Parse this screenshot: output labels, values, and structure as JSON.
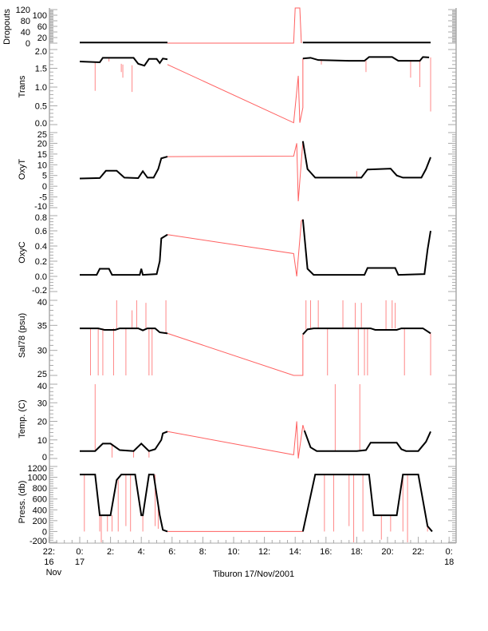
{
  "chart_data": [
    {
      "type": "line",
      "ylabel": "Dropouts",
      "ylim": [
        0,
        120
      ],
      "yticks": [
        "0",
        "20",
        "40",
        "60",
        "80",
        "100",
        "120"
      ],
      "black": [
        [
          "00:00",
          2
        ],
        [
          "05:42",
          2
        ],
        null,
        [
          "14:30",
          2
        ],
        [
          "22:48",
          2
        ]
      ],
      "red": [
        [
          "05:42",
          0
        ],
        [
          "13:54",
          0
        ],
        [
          "14:00",
          130
        ],
        [
          "14:18",
          130
        ],
        [
          "14:24",
          0
        ]
      ],
      "spikes": []
    },
    {
      "type": "line",
      "ylabel": "Trans",
      "ylim": [
        0,
        2
      ],
      "yticks": [
        "0.0",
        "0.5",
        "1.0",
        "1.5",
        "2.0"
      ],
      "black": [
        [
          "00:00",
          1.68
        ],
        [
          "01:18",
          1.66
        ],
        [
          "01:30",
          1.78
        ],
        [
          "03:30",
          1.78
        ],
        [
          "03:48",
          1.62
        ],
        [
          "04:12",
          1.57
        ],
        [
          "04:30",
          1.75
        ],
        [
          "05:00",
          1.75
        ],
        [
          "05:12",
          1.64
        ],
        [
          "05:24",
          1.76
        ],
        [
          "05:42",
          1.74
        ],
        null,
        [
          "14:30",
          1.76
        ],
        [
          "15:00",
          1.78
        ],
        [
          "15:30",
          1.72
        ],
        [
          "16:30",
          1.71
        ],
        [
          "17:30",
          1.7
        ],
        [
          "18:30",
          1.7
        ],
        [
          "18:48",
          1.8
        ],
        [
          "20:18",
          1.8
        ],
        [
          "20:42",
          1.7
        ],
        [
          "22:06",
          1.7
        ],
        [
          "22:18",
          1.8
        ],
        [
          "22:42",
          1.79
        ]
      ],
      "red": [
        [
          "05:42",
          1.6
        ],
        [
          "13:54",
          0.05
        ],
        [
          "14:12",
          1.3
        ],
        [
          "14:18",
          0.05
        ],
        [
          "14:30",
          0.45
        ],
        [
          "14:30",
          1.76
        ]
      ],
      "spikes": [
        [
          "01:00",
          1.67,
          0.9
        ],
        [
          "02:48",
          1.6,
          1.25
        ],
        [
          "03:24",
          1.58,
          0.87
        ],
        [
          "02:42",
          1.62,
          1.4
        ],
        [
          "01:54",
          1.76,
          1.68
        ],
        [
          "18:36",
          1.7,
          1.4
        ],
        [
          "21:30",
          1.7,
          1.25
        ],
        [
          "22:06",
          1.7,
          1.0
        ],
        [
          "22:48",
          1.79,
          0.35
        ],
        [
          "15:42",
          1.74,
          1.6
        ]
      ]
    },
    {
      "type": "line",
      "ylabel": "OxyT",
      "ylim": [
        -10,
        25
      ],
      "yticks": [
        "-10",
        "-5",
        "0",
        "5",
        "10",
        "15",
        "20",
        "25"
      ],
      "black": [
        [
          "00:00",
          3.6
        ],
        [
          "01:18",
          3.8
        ],
        [
          "01:42",
          7.2
        ],
        [
          "02:24",
          7.2
        ],
        [
          "02:54",
          4
        ],
        [
          "03:48",
          3.8
        ],
        [
          "04:06",
          7
        ],
        [
          "04:24",
          4
        ],
        [
          "04:48",
          4
        ],
        [
          "05:06",
          8
        ],
        [
          "05:18",
          13
        ],
        [
          "05:42",
          13.8
        ],
        null,
        [
          "14:30",
          21
        ],
        [
          "14:48",
          8
        ],
        [
          "15:18",
          4
        ],
        [
          "18:18",
          4
        ],
        [
          "18:42",
          7.8
        ],
        [
          "20:12",
          8.2
        ],
        [
          "20:36",
          5
        ],
        [
          "21:00",
          4
        ],
        [
          "22:12",
          4
        ],
        [
          "22:30",
          8
        ],
        [
          "22:48",
          13.5
        ]
      ],
      "red": [
        [
          "05:42",
          13.8
        ],
        [
          "13:54",
          14
        ],
        [
          "14:06",
          20
        ],
        [
          "14:12",
          -7
        ],
        [
          "14:30",
          21
        ]
      ],
      "spikes": [
        [
          "18:00",
          4,
          7
        ]
      ]
    },
    {
      "type": "line",
      "ylabel": "OxyC",
      "ylim": [
        -0.2,
        0.8
      ],
      "yticks": [
        "-0.2",
        "0.0",
        "0.2",
        "0.4",
        "0.6",
        "0.8"
      ],
      "black": [
        [
          "00:00",
          0.02
        ],
        [
          "01:06",
          0.02
        ],
        [
          "01:18",
          0.1
        ],
        [
          "01:54",
          0.1
        ],
        [
          "02:06",
          0.02
        ],
        [
          "03:54",
          0.02
        ],
        [
          "04:00",
          0.1
        ],
        [
          "04:06",
          0.02
        ],
        [
          "05:00",
          0.03
        ],
        [
          "05:12",
          0.2
        ],
        [
          "05:18",
          0.5
        ],
        [
          "05:42",
          0.55
        ],
        null,
        [
          "14:30",
          0.75
        ],
        [
          "14:48",
          0.1
        ],
        [
          "15:12",
          0.02
        ],
        [
          "18:30",
          0.02
        ],
        [
          "18:42",
          0.11
        ],
        [
          "20:30",
          0.11
        ],
        [
          "20:42",
          0.02
        ],
        [
          "22:24",
          0.03
        ],
        [
          "22:36",
          0.35
        ],
        [
          "22:48",
          0.6
        ]
      ],
      "red": [
        [
          "05:42",
          0.55
        ],
        [
          "13:54",
          0.3
        ],
        [
          "14:06",
          0.0
        ],
        [
          "14:24",
          0.73
        ],
        [
          "14:30",
          0.75
        ]
      ],
      "spikes": []
    },
    {
      "type": "line",
      "ylabel": "Sal78 (psu)",
      "ylim": [
        25,
        40
      ],
      "yticks": [
        "25",
        "30",
        "35",
        "40"
      ],
      "black": [
        [
          "00:00",
          34.4
        ],
        [
          "01:12",
          34.4
        ],
        [
          "01:36",
          34.1
        ],
        [
          "02:18",
          34.1
        ],
        [
          "02:36",
          34.4
        ],
        [
          "03:48",
          34.4
        ],
        [
          "04:06",
          34.0
        ],
        [
          "04:24",
          34.4
        ],
        [
          "04:54",
          34.4
        ],
        [
          "05:12",
          33.6
        ],
        [
          "05:42",
          33.4
        ],
        null,
        [
          "14:30",
          33.2
        ],
        [
          "14:48",
          34.2
        ],
        [
          "15:12",
          34.4
        ],
        [
          "18:54",
          34.4
        ],
        [
          "19:12",
          34.1
        ],
        [
          "20:36",
          34.1
        ],
        [
          "20:54",
          34.4
        ],
        [
          "22:18",
          34.4
        ],
        [
          "22:48",
          33.4
        ]
      ],
      "red": [
        [
          "05:42",
          33.4
        ],
        [
          "13:54",
          25
        ],
        [
          "14:30",
          25
        ],
        [
          "14:30",
          33.2
        ]
      ],
      "spikes": [
        [
          "00:42",
          34.4,
          25
        ],
        [
          "01:12",
          34.4,
          25
        ],
        [
          "01:30",
          34.4,
          25
        ],
        [
          "02:12",
          34.4,
          25
        ],
        [
          "02:24",
          34.4,
          40
        ],
        [
          "03:00",
          34.4,
          25
        ],
        [
          "03:24",
          34.4,
          38
        ],
        [
          "03:42",
          34.4,
          40
        ],
        [
          "04:30",
          34.4,
          25
        ],
        [
          "04:42",
          34.4,
          25
        ],
        [
          "04:18",
          34.4,
          39.5
        ],
        [
          "05:36",
          33.4,
          40
        ],
        [
          "14:42",
          34.2,
          40
        ],
        [
          "15:00",
          34.4,
          40
        ],
        [
          "15:30",
          34.4,
          40
        ],
        [
          "16:06",
          34.4,
          25
        ],
        [
          "17:06",
          34.4,
          40
        ],
        [
          "17:54",
          34.4,
          39.5
        ],
        [
          "18:06",
          34.4,
          25
        ],
        [
          "18:18",
          34.4,
          39.5
        ],
        [
          "18:30",
          34.4,
          25
        ],
        [
          "18:42",
          34.4,
          25
        ],
        [
          "19:54",
          34.1,
          40
        ],
        [
          "20:18",
          34.4,
          40
        ],
        [
          "20:30",
          34.4,
          39.5
        ],
        [
          "21:06",
          34.4,
          25
        ],
        [
          "22:48",
          33.4,
          25
        ]
      ]
    },
    {
      "type": "line",
      "ylabel": "Temp. (C)",
      "ylim": [
        0,
        40
      ],
      "yticks": [
        "0",
        "10",
        "20",
        "30",
        "40"
      ],
      "black": [
        [
          "00:00",
          4
        ],
        [
          "01:00",
          4
        ],
        [
          "01:30",
          8
        ],
        [
          "02:00",
          8
        ],
        [
          "02:36",
          4.5
        ],
        [
          "03:30",
          4
        ],
        [
          "04:00",
          8
        ],
        [
          "04:30",
          4
        ],
        [
          "04:54",
          5
        ],
        [
          "05:18",
          10
        ],
        [
          "05:24",
          13.5
        ],
        [
          "05:42",
          14.5
        ],
        null,
        [
          "14:36",
          15
        ],
        [
          "15:00",
          6
        ],
        [
          "15:24",
          4
        ],
        [
          "18:00",
          4
        ],
        [
          "18:36",
          4.5
        ],
        [
          "18:54",
          8.5
        ],
        [
          "20:36",
          8.5
        ],
        [
          "20:54",
          5
        ],
        [
          "21:12",
          4
        ],
        [
          "22:00",
          4
        ],
        [
          "22:30",
          9
        ],
        [
          "22:48",
          14.5
        ]
      ],
      "red": [
        [
          "05:42",
          14.5
        ],
        [
          "13:54",
          2
        ],
        [
          "14:06",
          20
        ],
        [
          "14:12",
          0
        ],
        [
          "14:30",
          18
        ],
        [
          "14:36",
          15
        ]
      ],
      "spikes": [
        [
          "01:00",
          4,
          40
        ],
        [
          "16:36",
          4,
          40
        ],
        [
          "18:12",
          4,
          40
        ],
        [
          "02:06",
          8,
          0.5
        ],
        [
          "03:30",
          4,
          0.5
        ],
        [
          "04:30",
          4,
          0.5
        ]
      ]
    },
    {
      "type": "line",
      "ylabel": "Press. (db)",
      "ylim": [
        -200,
        1200
      ],
      "yticks": [
        "-200",
        "0",
        "200",
        "400",
        "600",
        "800",
        "1000",
        "1200"
      ],
      "black": [
        [
          "00:00",
          1050
        ],
        [
          "01:00",
          1050
        ],
        [
          "01:18",
          300
        ],
        [
          "02:00",
          300
        ],
        [
          "02:24",
          950
        ],
        [
          "02:42",
          1050
        ],
        [
          "03:36",
          1050
        ],
        [
          "04:00",
          300
        ],
        [
          "04:06",
          300
        ],
        [
          "04:30",
          1050
        ],
        [
          "04:48",
          1050
        ],
        [
          "05:12",
          300
        ],
        [
          "05:24",
          30
        ],
        [
          "05:42",
          0
        ],
        null,
        [
          "14:30",
          0
        ],
        [
          "15:18",
          1050
        ],
        [
          "18:48",
          1050
        ],
        [
          "19:06",
          300
        ],
        [
          "20:36",
          300
        ],
        [
          "21:00",
          1050
        ],
        [
          "22:00",
          1050
        ],
        [
          "22:36",
          100
        ],
        [
          "22:54",
          0
        ]
      ],
      "red": [
        [
          "05:42",
          0
        ],
        [
          "14:30",
          0
        ]
      ],
      "spikes": [
        [
          "00:18",
          1050,
          0
        ],
        [
          "01:18",
          300,
          0
        ],
        [
          "01:24",
          300,
          -200
        ],
        [
          "01:48",
          300,
          0
        ],
        [
          "02:06",
          300,
          0
        ],
        [
          "02:30",
          950,
          0
        ],
        [
          "03:00",
          1050,
          100
        ],
        [
          "03:18",
          1050,
          0
        ],
        [
          "04:06",
          300,
          0
        ],
        [
          "04:54",
          1050,
          100
        ],
        [
          "05:06",
          500,
          50
        ],
        [
          "15:54",
          1050,
          0
        ],
        [
          "16:30",
          1050,
          0
        ],
        [
          "17:30",
          1050,
          100
        ],
        [
          "17:48",
          1050,
          -200
        ],
        [
          "18:24",
          1050,
          0
        ],
        [
          "19:36",
          300,
          -150
        ],
        [
          "20:12",
          300,
          0
        ],
        [
          "21:00",
          1050,
          0
        ],
        [
          "21:18",
          1050,
          -200
        ],
        [
          "22:36",
          100,
          0
        ]
      ]
    }
  ],
  "xaxis": {
    "ticks": [
      {
        "time": "-02:00",
        "lines": [
          "22:",
          "16",
          "Nov"
        ]
      },
      {
        "time": "00:00",
        "lines": [
          "0:",
          "17"
        ]
      },
      {
        "time": "02:00",
        "lines": [
          "2:"
        ]
      },
      {
        "time": "04:00",
        "lines": [
          "4:"
        ]
      },
      {
        "time": "06:00",
        "lines": [
          "6:"
        ]
      },
      {
        "time": "08:00",
        "lines": [
          "8:"
        ]
      },
      {
        "time": "10:00",
        "lines": [
          "10:"
        ]
      },
      {
        "time": "12:00",
        "lines": [
          "12:"
        ]
      },
      {
        "time": "14:00",
        "lines": [
          "14:"
        ]
      },
      {
        "time": "16:00",
        "lines": [
          "16:"
        ]
      },
      {
        "time": "18:00",
        "lines": [
          "18:"
        ]
      },
      {
        "time": "20:00",
        "lines": [
          "20:"
        ]
      },
      {
        "time": "22:00",
        "lines": [
          "22:"
        ]
      },
      {
        "time": "24:00",
        "lines": [
          "0:",
          "18"
        ]
      }
    ],
    "title": "Tiburon 17/Nov/2001"
  },
  "colors": {
    "data": "#000000",
    "gap": "#ff6060",
    "axis": "#aaaaaa"
  }
}
